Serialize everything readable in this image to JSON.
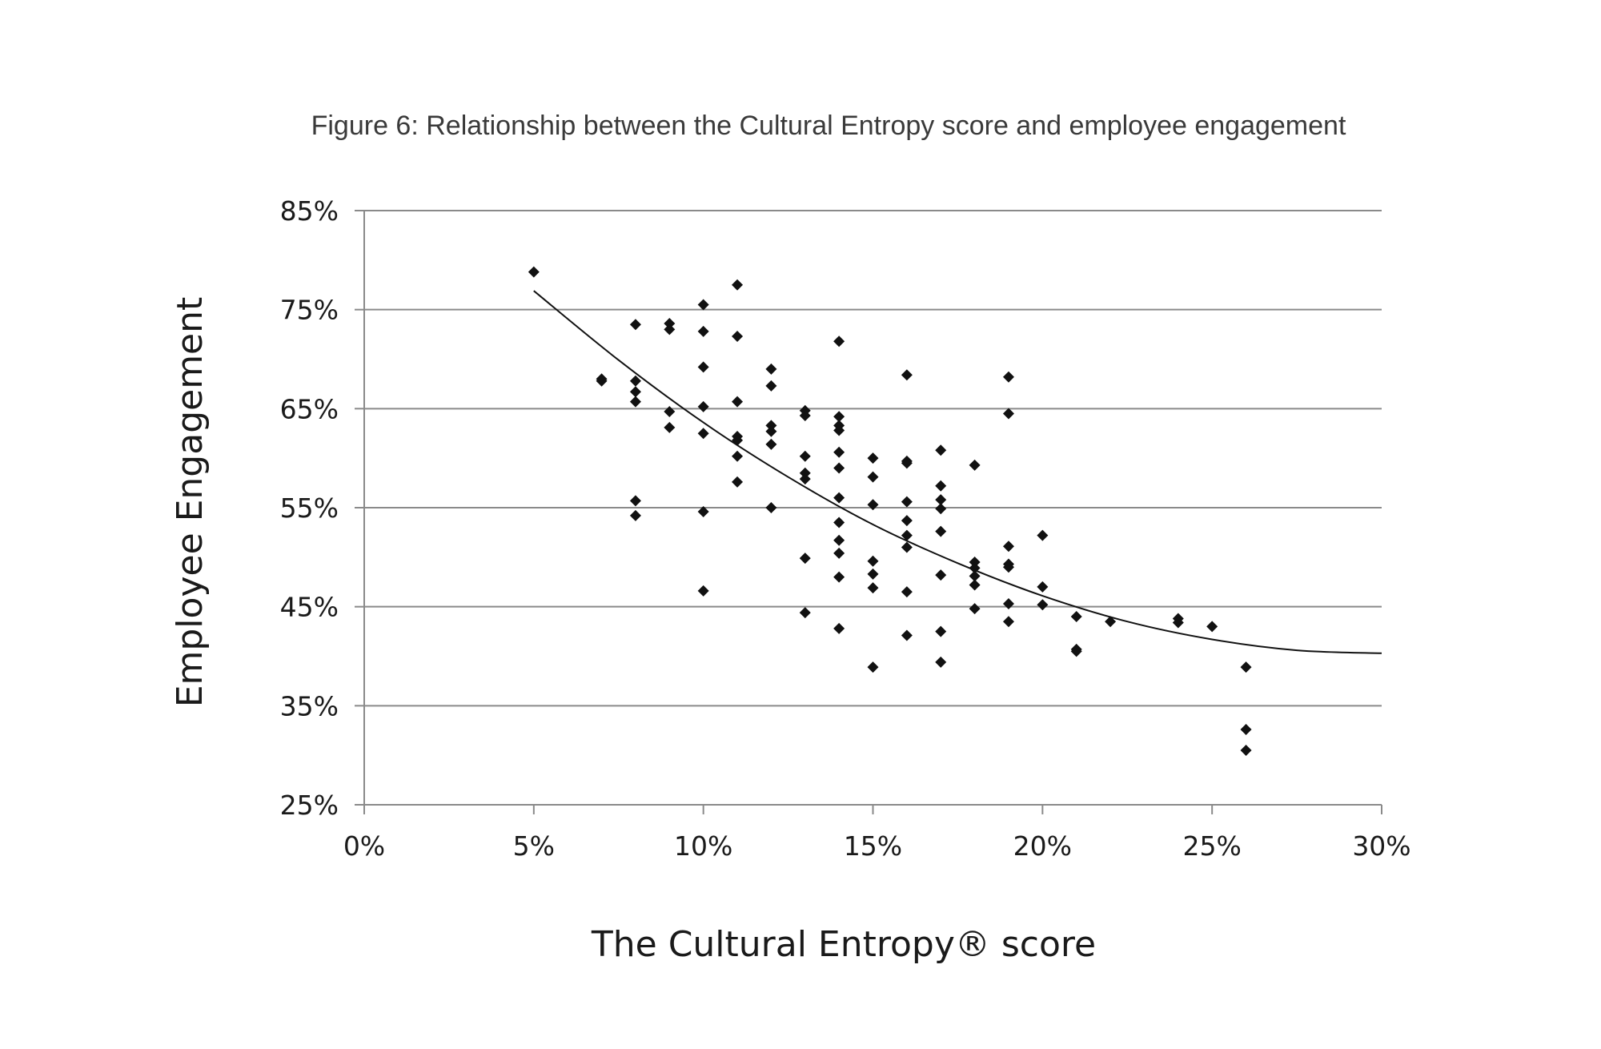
{
  "chart_data": {
    "type": "scatter",
    "title": "Figure 6: Relationship between the Cultural Entropy score and employee engagement",
    "xlabel": "The Cultural Entropy® score",
    "ylabel": "Employee Engagement",
    "xlim": [
      0,
      30
    ],
    "ylim": [
      25,
      85
    ],
    "x_ticks": [
      0,
      5,
      10,
      15,
      20,
      25,
      30
    ],
    "y_ticks": [
      25,
      35,
      45,
      55,
      65,
      75,
      85
    ],
    "x_tick_labels": [
      "0%",
      "5%",
      "10%",
      "15%",
      "20%",
      "25%",
      "30%"
    ],
    "y_tick_labels": [
      "25%",
      "35%",
      "45%",
      "55%",
      "65%",
      "75%",
      "85%"
    ],
    "grid": "horizontal",
    "legend": "none",
    "marker": "diamond",
    "colors": {
      "points": "#111111",
      "trend": "#111111",
      "grid": "#8a8a8a"
    },
    "points": [
      [
        5,
        78.8
      ],
      [
        7,
        68.0
      ],
      [
        7,
        67.8
      ],
      [
        8,
        73.5
      ],
      [
        8,
        67.8
      ],
      [
        8,
        66.7
      ],
      [
        8,
        65.7
      ],
      [
        8,
        55.7
      ],
      [
        8,
        54.2
      ],
      [
        9,
        73.6
      ],
      [
        9,
        73.0
      ],
      [
        9,
        64.7
      ],
      [
        9,
        63.1
      ],
      [
        10,
        75.5
      ],
      [
        10,
        72.8
      ],
      [
        10,
        69.2
      ],
      [
        10,
        65.2
      ],
      [
        10,
        62.5
      ],
      [
        10,
        54.6
      ],
      [
        10,
        46.6
      ],
      [
        11,
        77.5
      ],
      [
        11,
        72.3
      ],
      [
        11,
        65.7
      ],
      [
        11,
        62.2
      ],
      [
        11,
        61.8
      ],
      [
        11,
        60.2
      ],
      [
        11,
        57.6
      ],
      [
        12,
        69.0
      ],
      [
        12,
        67.3
      ],
      [
        12,
        63.3
      ],
      [
        12,
        62.7
      ],
      [
        12,
        61.4
      ],
      [
        12,
        55.0
      ],
      [
        13,
        64.8
      ],
      [
        13,
        64.3
      ],
      [
        13,
        60.2
      ],
      [
        13,
        58.5
      ],
      [
        13,
        57.9
      ],
      [
        13,
        49.9
      ],
      [
        13,
        44.4
      ],
      [
        14,
        71.8
      ],
      [
        14,
        64.2
      ],
      [
        14,
        63.3
      ],
      [
        14,
        62.8
      ],
      [
        14,
        60.6
      ],
      [
        14,
        59.0
      ],
      [
        14,
        56.0
      ],
      [
        14,
        53.5
      ],
      [
        14,
        51.7
      ],
      [
        14,
        50.4
      ],
      [
        14,
        48.0
      ],
      [
        14,
        42.8
      ],
      [
        15,
        60.0
      ],
      [
        15,
        58.1
      ],
      [
        15,
        55.3
      ],
      [
        15,
        49.6
      ],
      [
        15,
        48.3
      ],
      [
        15,
        46.9
      ],
      [
        15,
        38.9
      ],
      [
        16,
        68.4
      ],
      [
        16,
        59.7
      ],
      [
        16,
        59.5
      ],
      [
        16,
        55.6
      ],
      [
        16,
        53.7
      ],
      [
        16,
        52.2
      ],
      [
        16,
        51.0
      ],
      [
        16,
        46.5
      ],
      [
        16,
        42.1
      ],
      [
        17,
        60.8
      ],
      [
        17,
        57.2
      ],
      [
        17,
        55.8
      ],
      [
        17,
        54.9
      ],
      [
        17,
        52.6
      ],
      [
        17,
        48.2
      ],
      [
        17,
        42.5
      ],
      [
        17,
        39.4
      ],
      [
        18,
        59.3
      ],
      [
        18,
        49.5
      ],
      [
        18,
        48.9
      ],
      [
        18,
        48.1
      ],
      [
        18,
        47.2
      ],
      [
        18,
        44.8
      ],
      [
        19,
        68.2
      ],
      [
        19,
        64.5
      ],
      [
        19,
        51.1
      ],
      [
        19,
        49.3
      ],
      [
        19,
        49.0
      ],
      [
        19,
        45.3
      ],
      [
        19,
        43.5
      ],
      [
        20,
        52.2
      ],
      [
        20,
        47.0
      ],
      [
        20,
        45.2
      ],
      [
        21,
        44.0
      ],
      [
        21,
        40.7
      ],
      [
        21,
        40.5
      ],
      [
        22,
        43.5
      ],
      [
        24,
        43.8
      ],
      [
        24,
        43.4
      ],
      [
        25,
        43.0
      ],
      [
        26,
        38.9
      ],
      [
        26,
        32.6
      ],
      [
        26,
        30.5
      ]
    ],
    "trendline": {
      "type": "polynomial",
      "x_range": [
        5,
        30
      ],
      "x": [
        5,
        7.5,
        10,
        12.5,
        15,
        17.5,
        20,
        22.5,
        25,
        27.5,
        30
      ],
      "y": [
        76.9,
        69.9,
        63.6,
        58.1,
        53.3,
        49.4,
        46.1,
        43.5,
        41.7,
        40.6,
        40.3
      ]
    }
  }
}
